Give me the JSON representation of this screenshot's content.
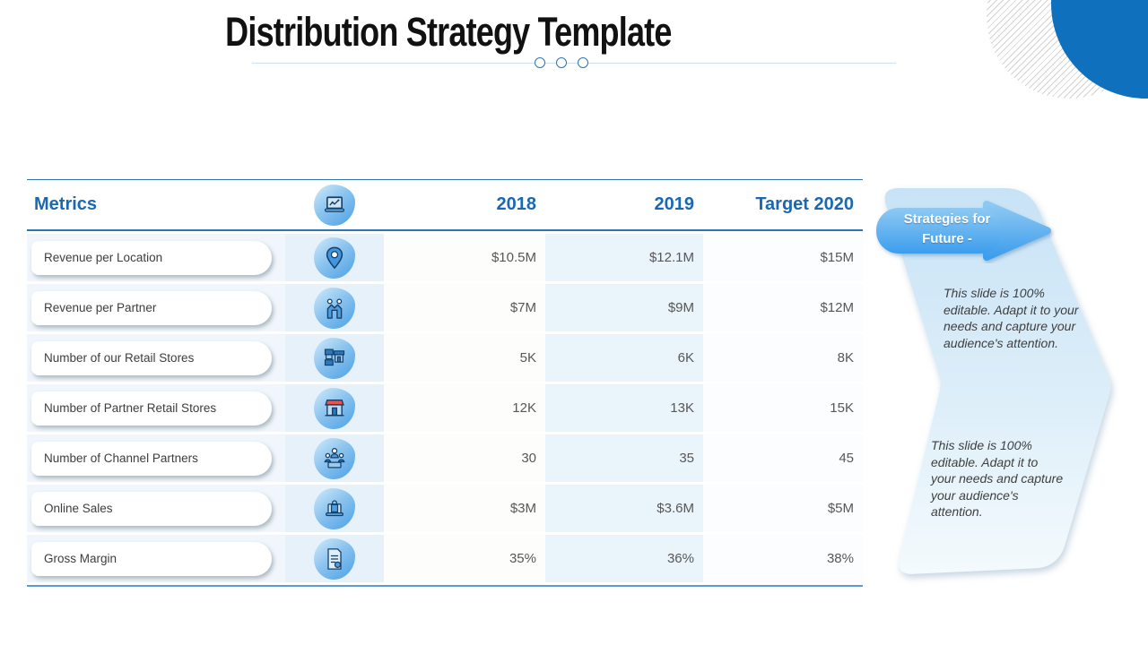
{
  "slide": {
    "title": "Distribution Strategy Template"
  },
  "table": {
    "headers": {
      "metrics": "Metrics",
      "col2018": "2018",
      "col2019": "2019",
      "target2020": "Target 2020"
    },
    "header_icon": "laptop-analytics-icon",
    "rows": [
      {
        "label": "Revenue per Location",
        "icon": "location-pin-icon",
        "v2018": "$10.5M",
        "v2019": "$12.1M",
        "target": "$15M"
      },
      {
        "label": "Revenue per Partner",
        "icon": "partners-icon",
        "v2018": "$7M",
        "v2019": "$9M",
        "target": "$12M"
      },
      {
        "label": "Number of our Retail Stores",
        "icon": "retail-stores-icon",
        "v2018": "5K",
        "v2019": "6K",
        "target": "8K"
      },
      {
        "label": "Number of Partner Retail Stores",
        "icon": "storefront-icon",
        "v2018": "12K",
        "v2019": "13K",
        "target": "15K"
      },
      {
        "label": "Number of Channel Partners",
        "icon": "channel-partners-icon",
        "v2018": "30",
        "v2019": "35",
        "target": "45"
      },
      {
        "label": "Online Sales",
        "icon": "online-sales-icon",
        "v2018": "$3M",
        "v2019": "$3.6M",
        "target": "$5M"
      },
      {
        "label": "Gross Margin",
        "icon": "invoice-icon",
        "v2018": "35%",
        "v2019": "36%",
        "target": "38%"
      }
    ]
  },
  "callout": {
    "banner_line1": "Strategies for",
    "banner_line2": "Future -",
    "notes": [
      "This slide is 100% editable. Adapt it to your needs and capture your audience's attention.",
      "This slide is 100% editable. Adapt it to your needs and capture your audience's attention."
    ]
  },
  "colors": {
    "accent_blue": "#1a68b2",
    "corner_circle_blue": "#0f70bd",
    "banner_blue": "#3d9ded",
    "table_border_blue": "#2e75b6",
    "table_bottom_border": "#5b9bd5",
    "row_tint_blue": "#eaf4fb",
    "value_gray": "#575757"
  },
  "chart_data": {
    "type": "table",
    "columns": [
      "Metrics",
      "2018",
      "2019",
      "Target 2020"
    ],
    "rows": [
      [
        "Revenue per Location",
        "$10.5M",
        "$12.1M",
        "$15M"
      ],
      [
        "Revenue per Partner",
        "$7M",
        "$9M",
        "$12M"
      ],
      [
        "Number of our Retail Stores",
        "5K",
        "6K",
        "8K"
      ],
      [
        "Number of Partner Retail Stores",
        "12K",
        "13K",
        "15K"
      ],
      [
        "Number of Channel Partners",
        "30",
        "35",
        "45"
      ],
      [
        "Online Sales",
        "$3M",
        "$3.6M",
        "$5M"
      ],
      [
        "Gross Margin",
        "35%",
        "36%",
        "38%"
      ]
    ]
  }
}
